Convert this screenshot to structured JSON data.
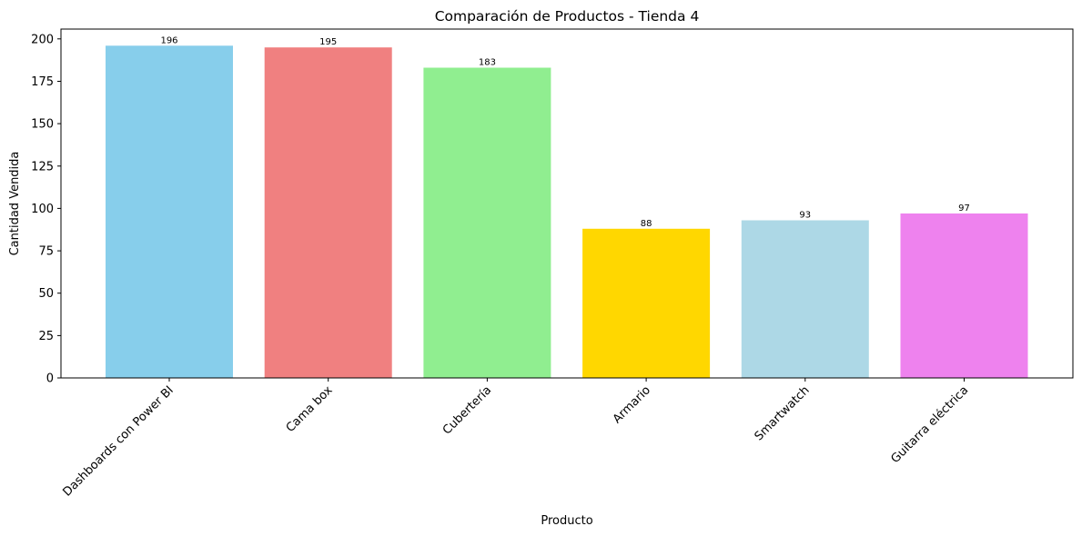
{
  "chart_data": {
    "type": "bar",
    "title": "Comparación de Productos - Tienda 4",
    "xlabel": "Producto",
    "ylabel": "Cantidad Vendida",
    "categories": [
      "Dashboards con Power BI",
      "Cama box",
      "Cubertería",
      "Armario",
      "Smartwatch",
      "Guitarra eléctrica"
    ],
    "values": [
      196,
      195,
      183,
      88,
      93,
      97
    ],
    "colors": [
      "#87ceeb",
      "#f08080",
      "#90ee90",
      "#ffd700",
      "#add8e6",
      "#ee82ee"
    ],
    "ylim": [
      0,
      205.8
    ],
    "yticks": [
      0,
      25,
      50,
      75,
      100,
      125,
      150,
      175,
      200
    ],
    "grid": false,
    "legend": "none"
  }
}
